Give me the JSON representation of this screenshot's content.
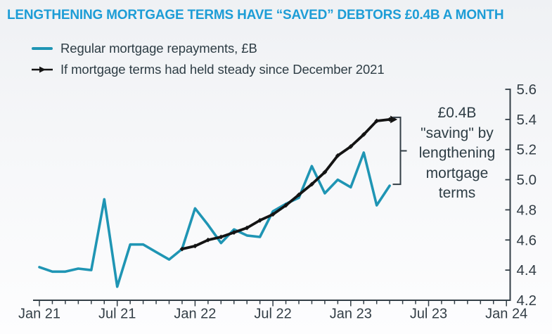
{
  "title": "LENGTHENING MORTGAGE TERMS HAVE “SAVED” DEBTORS £0.4B A MONTH",
  "legend": {
    "items": [
      {
        "label": "Regular mortgage repayments, £B",
        "color": "#1f95b4",
        "marker": "line"
      },
      {
        "label": "If mortgage terms had held steady since December 2021",
        "color": "#141414",
        "marker": "arrow-line"
      }
    ]
  },
  "annotation": {
    "lines": [
      "£0.4B",
      "\"saving\" by",
      "lengthening",
      "mortgage",
      "terms"
    ],
    "text": "£0.4B \"saving\" by lengthening mortgage terms"
  },
  "colors": {
    "accent_blue": "#1d9dd6",
    "teal": "#1f95b4",
    "line_black": "#141414",
    "text_dark": "#2e3d45",
    "axis": "#333e46"
  },
  "chart_data": {
    "type": "line",
    "title": "LENGTHENING MORTGAGE TERMS HAVE “SAVED” DEBTORS £0.4B A MONTH",
    "ylabel": "£B",
    "grid": false,
    "legend_position": "top-left",
    "y_axis_side": "right",
    "ylim": [
      4.2,
      5.6
    ],
    "y_ticks": [
      4.2,
      4.4,
      4.6,
      4.8,
      5.0,
      5.2,
      5.4,
      5.6
    ],
    "x_tick_labels": [
      "Jan 21",
      "Jul 21",
      "Jan 22",
      "Jul 22",
      "Jan 23",
      "Jul 23",
      "Jan 24"
    ],
    "x_minor_tick_unit": "month",
    "x_total_months": 36,
    "series": [
      {
        "name": "Regular mortgage repayments, £B",
        "color": "#1f95b4",
        "start": "Jan 2021",
        "end": "Apr 2023",
        "start_month_index": 0,
        "markers": "none",
        "values": [
          4.42,
          4.39,
          4.39,
          4.41,
          4.4,
          4.87,
          4.29,
          4.57,
          4.57,
          4.52,
          4.47,
          4.54,
          4.81,
          4.7,
          4.58,
          4.67,
          4.63,
          4.62,
          4.79,
          4.84,
          4.88,
          5.09,
          4.91,
          5.0,
          4.95,
          5.18,
          4.83,
          4.96
        ]
      },
      {
        "name": "If mortgage terms had held steady since December 2021",
        "color": "#141414",
        "start": "Dec 2021",
        "end": "Apr 2023",
        "start_month_index": 11,
        "markers": "diamond",
        "end_arrow": true,
        "values": [
          4.54,
          4.56,
          4.6,
          4.62,
          4.65,
          4.68,
          4.73,
          4.77,
          4.83,
          4.9,
          4.97,
          5.05,
          5.16,
          5.22,
          5.3,
          5.39,
          5.4
        ]
      }
    ],
    "annotation": "£0.4B \"saving\" by lengthening mortgage terms"
  }
}
